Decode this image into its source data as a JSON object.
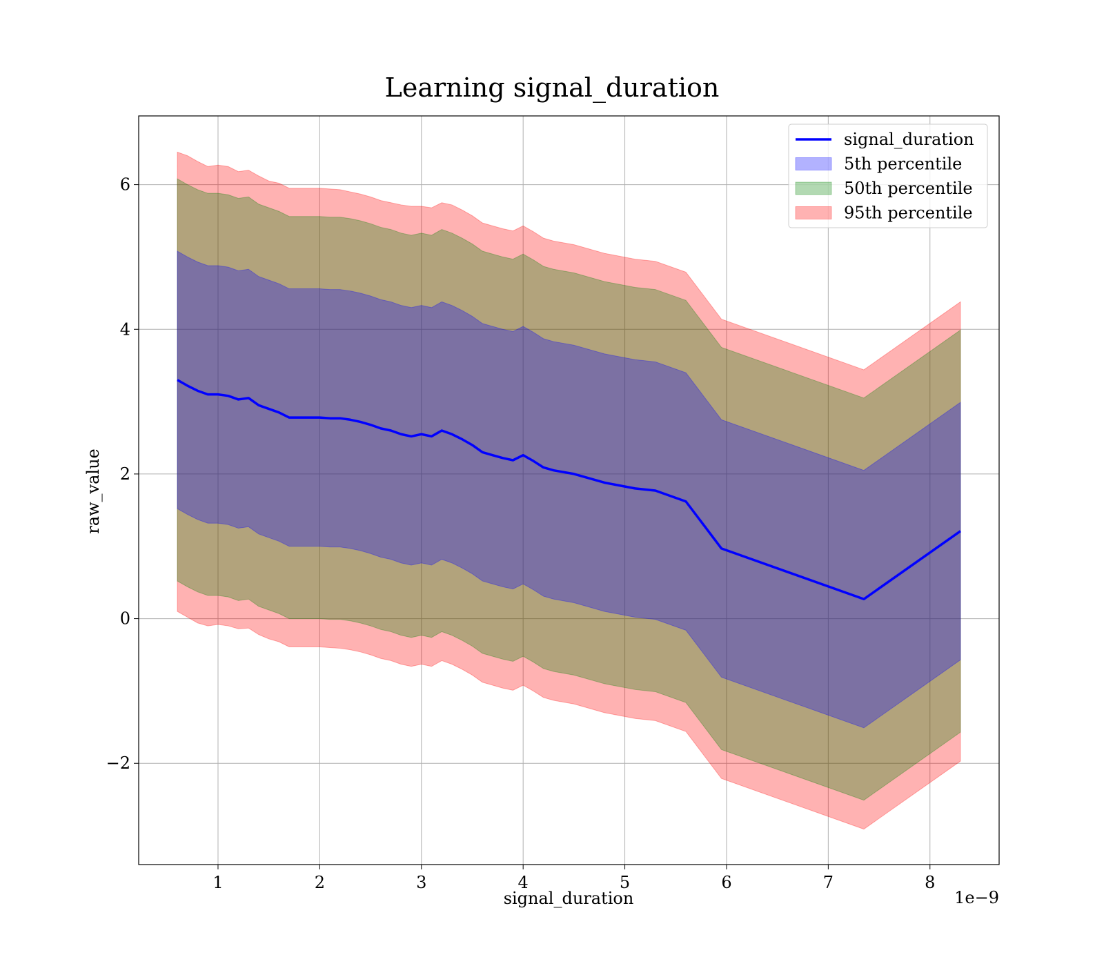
{
  "chart_data": {
    "type": "area",
    "title": "Learning signal_duration",
    "xlabel": "signal_duration",
    "ylabel": "raw_value",
    "x_offset_label": "1e−9",
    "xlim": [
      0.22,
      8.68
    ],
    "ylim": [
      -3.4,
      6.95
    ],
    "xticks": [
      1,
      2,
      3,
      4,
      5,
      6,
      7,
      8
    ],
    "xtick_labels": [
      "1",
      "2",
      "3",
      "4",
      "5",
      "6",
      "7",
      "8"
    ],
    "yticks": [
      -2,
      0,
      2,
      4,
      6
    ],
    "ytick_labels": [
      "−2",
      "0",
      "2",
      "4",
      "6"
    ],
    "grid": true,
    "legend_position": "top-right",
    "legend": [
      "signal_duration",
      "5th percentile",
      "50th percentile",
      "95th percentile"
    ],
    "colors": {
      "line": "#0000ff",
      "band_5": "#0000ff",
      "band_50": "#008000",
      "band_95": "#ff0000"
    },
    "x": [
      0.6,
      0.7,
      0.8,
      0.9,
      1.0,
      1.1,
      1.2,
      1.3,
      1.4,
      1.5,
      1.6,
      1.7,
      1.8,
      1.9,
      2.0,
      2.1,
      2.2,
      2.3,
      2.4,
      2.5,
      2.6,
      2.7,
      2.8,
      2.9,
      3.0,
      3.1,
      3.2,
      3.3,
      3.4,
      3.5,
      3.6,
      3.7,
      3.8,
      3.9,
      4.0,
      4.1,
      4.2,
      4.3,
      4.5,
      4.8,
      5.1,
      5.3,
      5.6,
      5.95,
      7.35,
      8.3
    ],
    "series": [
      {
        "name": "signal_duration",
        "values": [
          3.3,
          3.22,
          3.15,
          3.1,
          3.1,
          3.08,
          3.03,
          3.05,
          2.95,
          2.9,
          2.85,
          2.78,
          2.78,
          2.78,
          2.78,
          2.77,
          2.77,
          2.75,
          2.72,
          2.68,
          2.63,
          2.6,
          2.55,
          2.52,
          2.55,
          2.52,
          2.6,
          2.55,
          2.48,
          2.4,
          2.3,
          2.26,
          2.22,
          2.19,
          2.26,
          2.18,
          2.09,
          2.05,
          2.0,
          1.88,
          1.8,
          1.77,
          1.62,
          0.97,
          0.27,
          1.21
        ]
      }
    ],
    "bands": [
      {
        "name": "95th percentile",
        "upper": [
          6.45,
          6.4,
          6.32,
          6.25,
          6.27,
          6.25,
          6.18,
          6.2,
          6.12,
          6.05,
          6.02,
          5.95,
          5.95,
          5.95,
          5.95,
          5.94,
          5.93,
          5.9,
          5.87,
          5.83,
          5.78,
          5.75,
          5.72,
          5.7,
          5.7,
          5.68,
          5.75,
          5.72,
          5.65,
          5.57,
          5.47,
          5.43,
          5.39,
          5.36,
          5.43,
          5.35,
          5.26,
          5.22,
          5.17,
          5.05,
          4.97,
          4.94,
          4.79,
          4.14,
          3.44,
          4.38
        ],
        "lower": [
          0.1,
          0.02,
          -0.06,
          -0.1,
          -0.08,
          -0.1,
          -0.14,
          -0.13,
          -0.22,
          -0.28,
          -0.32,
          -0.39,
          -0.39,
          -0.39,
          -0.39,
          -0.4,
          -0.41,
          -0.43,
          -0.46,
          -0.5,
          -0.55,
          -0.58,
          -0.63,
          -0.66,
          -0.63,
          -0.66,
          -0.58,
          -0.63,
          -0.7,
          -0.78,
          -0.88,
          -0.92,
          -0.96,
          -0.99,
          -0.92,
          -1.0,
          -1.09,
          -1.13,
          -1.18,
          -1.3,
          -1.38,
          -1.41,
          -1.56,
          -2.21,
          -2.91,
          -1.97
        ]
      },
      {
        "name": "50th percentile",
        "upper": [
          6.08,
          6.0,
          5.93,
          5.88,
          5.88,
          5.86,
          5.81,
          5.83,
          5.73,
          5.68,
          5.63,
          5.56,
          5.56,
          5.56,
          5.56,
          5.55,
          5.55,
          5.53,
          5.5,
          5.46,
          5.41,
          5.38,
          5.33,
          5.3,
          5.33,
          5.3,
          5.38,
          5.33,
          5.26,
          5.18,
          5.08,
          5.04,
          5.0,
          4.97,
          5.04,
          4.96,
          4.87,
          4.83,
          4.78,
          4.66,
          4.58,
          4.55,
          4.4,
          3.75,
          3.05,
          3.99
        ],
        "lower": [
          0.52,
          0.44,
          0.37,
          0.32,
          0.32,
          0.3,
          0.25,
          0.27,
          0.17,
          0.12,
          0.07,
          0.0,
          0.0,
          0.0,
          0.0,
          -0.01,
          -0.01,
          -0.03,
          -0.06,
          -0.1,
          -0.15,
          -0.18,
          -0.23,
          -0.26,
          -0.23,
          -0.26,
          -0.18,
          -0.23,
          -0.3,
          -0.38,
          -0.48,
          -0.52,
          -0.56,
          -0.59,
          -0.52,
          -0.6,
          -0.69,
          -0.73,
          -0.78,
          -0.9,
          -0.98,
          -1.01,
          -1.16,
          -1.81,
          -2.51,
          -1.57
        ]
      },
      {
        "name": "5th percentile",
        "upper": [
          5.08,
          5.0,
          4.93,
          4.88,
          4.88,
          4.86,
          4.81,
          4.83,
          4.73,
          4.68,
          4.63,
          4.56,
          4.56,
          4.56,
          4.56,
          4.55,
          4.55,
          4.53,
          4.5,
          4.46,
          4.41,
          4.38,
          4.33,
          4.3,
          4.33,
          4.3,
          4.38,
          4.33,
          4.26,
          4.18,
          4.08,
          4.04,
          4.0,
          3.97,
          4.04,
          3.96,
          3.87,
          3.83,
          3.78,
          3.66,
          3.58,
          3.55,
          3.4,
          2.75,
          2.05,
          2.99
        ],
        "lower": [
          1.52,
          1.44,
          1.37,
          1.32,
          1.32,
          1.3,
          1.25,
          1.27,
          1.17,
          1.12,
          1.07,
          1.0,
          1.0,
          1.0,
          1.0,
          0.99,
          0.99,
          0.97,
          0.94,
          0.9,
          0.85,
          0.82,
          0.77,
          0.74,
          0.77,
          0.74,
          0.82,
          0.77,
          0.7,
          0.62,
          0.52,
          0.48,
          0.44,
          0.41,
          0.48,
          0.4,
          0.31,
          0.27,
          0.22,
          0.1,
          0.02,
          -0.01,
          -0.16,
          -0.81,
          -1.51,
          -0.57
        ]
      }
    ]
  }
}
